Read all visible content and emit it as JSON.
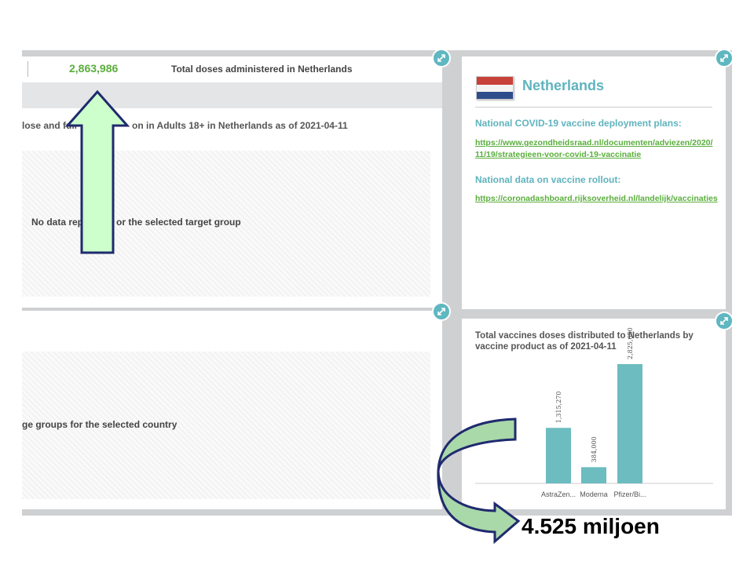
{
  "summary": {
    "total_doses": "2,863,986",
    "total_doses_label": "Total doses administered in Netherlands"
  },
  "uptake_chart": {
    "title": "lose and full v[...]on in Adults 18+ in Netherlands as of 2021-04-11",
    "title_left": "lose and full v",
    "title_right": "on in Adults 18+ in Netherlands as of 2021-04-11",
    "no_data_left": "No data rep",
    "no_data_right": "or the selected target group"
  },
  "age_chart": {
    "no_data": "ge groups for the selected country"
  },
  "country_panel": {
    "country": "Netherlands",
    "plans_heading": "National COVID-19 vaccine deployment plans:",
    "plans_link_line1": "https://www.gezondheidsraad.nl/documenten/adviezen/2020/",
    "plans_link_line2": "11/19/strategieen-voor-covid-19-vaccinatie",
    "rollout_heading": "National data on vaccine rollout:",
    "rollout_link": "https://coronadashboard.rijksoverheid.nl/landelijk/vaccinaties"
  },
  "distribution_chart": {
    "title_line1": "Total vaccines doses distributed to Netherlands by",
    "title_line2": "vaccine product as of 2021-04-11"
  },
  "annotation": {
    "text": "4.525 miljoen"
  },
  "colors": {
    "accent_green": "#5aae3c",
    "accent_teal": "#5fb7c0",
    "arrow_fill": "#ccffcc",
    "arrow_stroke": "#1f2a6e"
  },
  "chart_data": {
    "type": "bar",
    "title": "Total vaccines doses distributed to Netherlands by vaccine product as of 2021-04-11",
    "categories": [
      "AstraZen...",
      "Moderna",
      "Pfizer/Bi..."
    ],
    "values": [
      1315270,
      384000,
      2825650
    ],
    "value_labels": [
      "1,315,270",
      "384,000",
      "2,825,650"
    ],
    "ylim": [
      0,
      2825650
    ]
  }
}
